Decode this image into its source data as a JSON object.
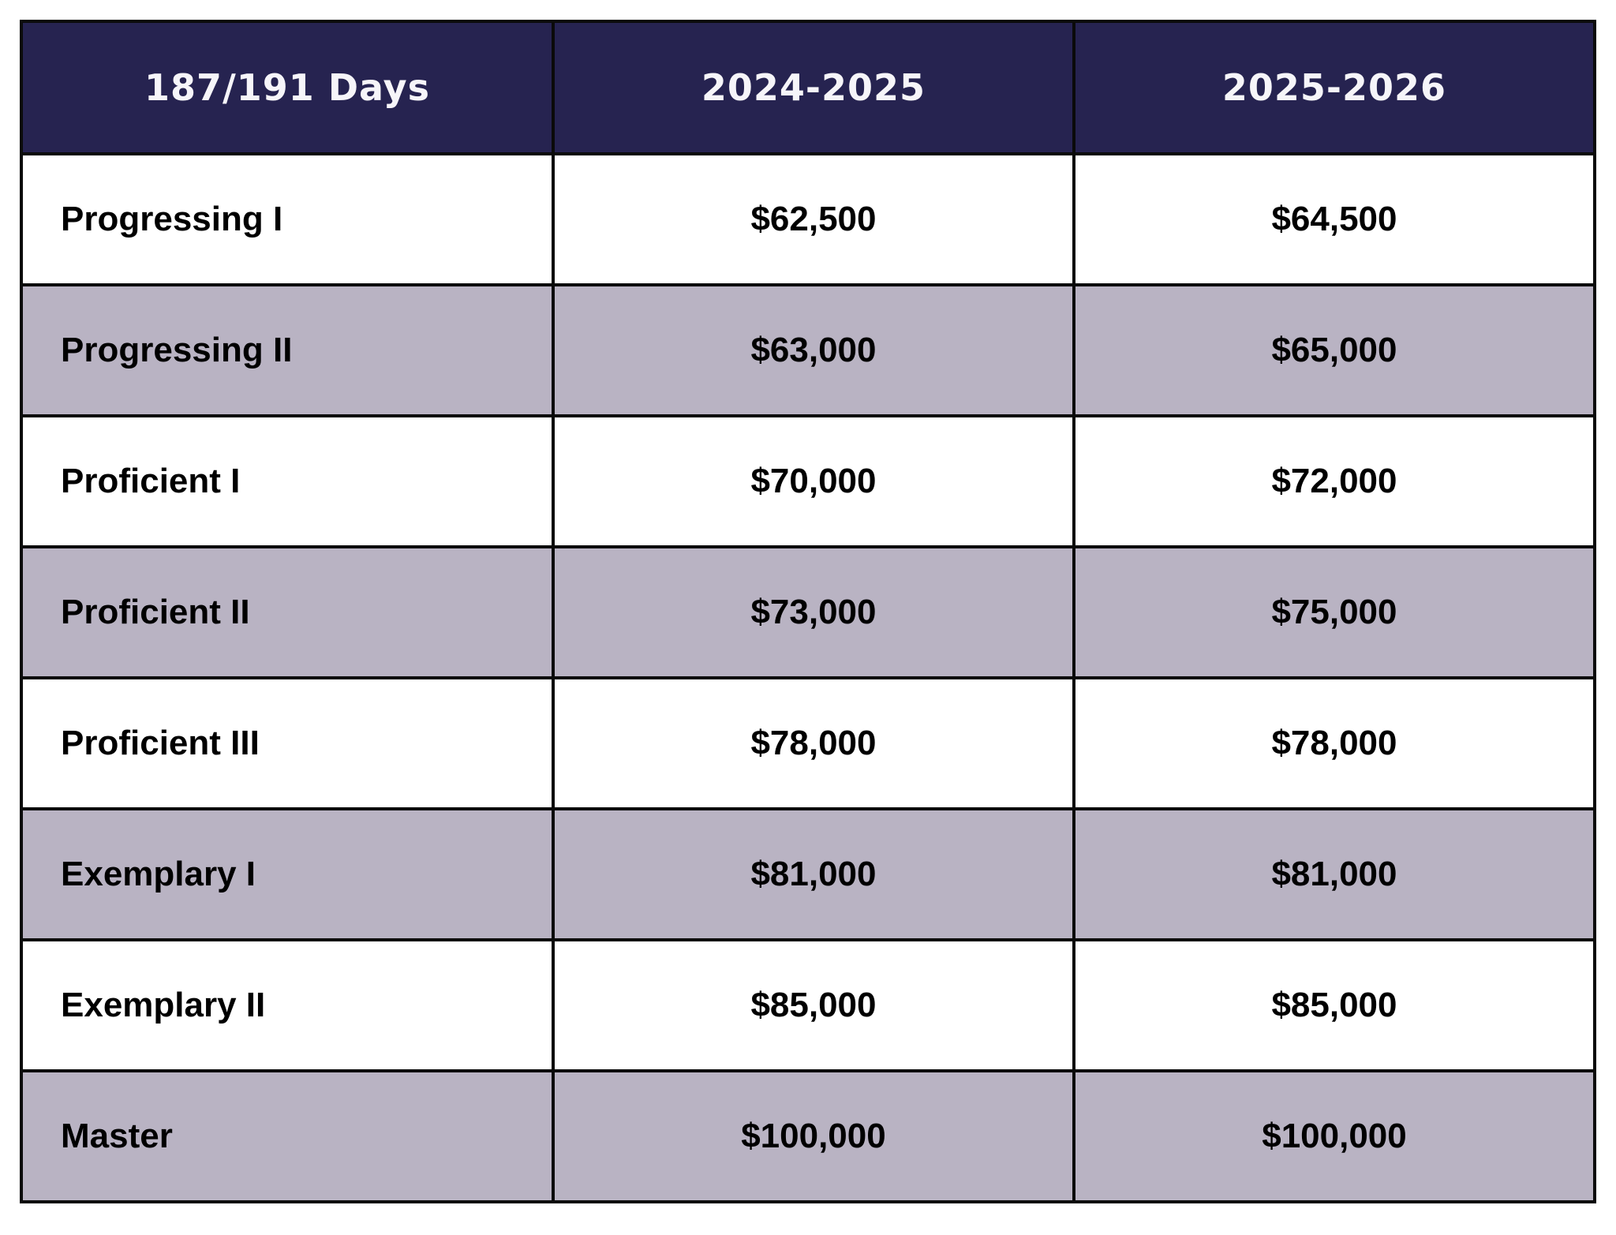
{
  "colors": {
    "header_bg": "#262350",
    "header_text": "#f6f5f9",
    "row_bg": "#ffffff",
    "row_alt_bg": "#b9b3c3",
    "border": "#0a0a0a",
    "body_text": "#000000"
  },
  "table": {
    "headers": [
      "187/191 Days",
      "2024-2025",
      "2025-2026"
    ],
    "rows": [
      {
        "cells": [
          "Progressing I",
          "$62,500",
          "$64,500"
        ]
      },
      {
        "cells": [
          "Progressing II",
          "$63,000",
          "$65,000"
        ]
      },
      {
        "cells": [
          "Proficient I",
          "$70,000",
          "$72,000"
        ]
      },
      {
        "cells": [
          "Proficient II",
          "$73,000",
          "$75,000"
        ]
      },
      {
        "cells": [
          "Proficient III",
          "$78,000",
          "$78,000"
        ]
      },
      {
        "cells": [
          "Exemplary I",
          "$81,000",
          "$81,000"
        ]
      },
      {
        "cells": [
          "Exemplary II",
          "$85,000",
          "$85,000"
        ]
      },
      {
        "cells": [
          "Master",
          "$100,000",
          "$100,000"
        ]
      }
    ]
  },
  "chart_data": {
    "type": "table",
    "title": "187/191 Days salary schedule",
    "columns": [
      "187/191 Days",
      "2024-2025",
      "2025-2026"
    ],
    "rows": [
      [
        "Progressing I",
        62500,
        64500
      ],
      [
        "Progressing II",
        63000,
        65000
      ],
      [
        "Proficient I",
        70000,
        72000
      ],
      [
        "Proficient II",
        73000,
        75000
      ],
      [
        "Proficient III",
        78000,
        78000
      ],
      [
        "Exemplary I",
        81000,
        81000
      ],
      [
        "Exemplary II",
        85000,
        85000
      ],
      [
        "Master",
        100000,
        100000
      ]
    ]
  }
}
